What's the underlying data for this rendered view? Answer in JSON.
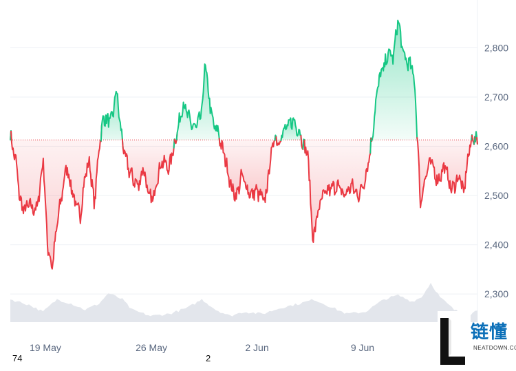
{
  "chart_data": {
    "type": "line",
    "baseline": 2613,
    "ylim": [
      2215,
      2890
    ],
    "yticks": [
      "2,300",
      "2,400",
      "2,500",
      "2,600",
      "2,700",
      "2,800"
    ],
    "ytick_values": [
      2300,
      2400,
      2500,
      2600,
      2700,
      2800
    ],
    "xticks": [
      "19 May",
      "26 May",
      "2 Jun",
      "9 Jun"
    ],
    "xtick_pos": [
      0.075,
      0.302,
      0.528,
      0.754
    ],
    "price_keypoints": [
      [
        0.0,
        2625
      ],
      [
        0.004,
        2600
      ],
      [
        0.012,
        2570
      ],
      [
        0.02,
        2495
      ],
      [
        0.028,
        2470
      ],
      [
        0.04,
        2480
      ],
      [
        0.055,
        2470
      ],
      [
        0.062,
        2500
      ],
      [
        0.07,
        2580
      ],
      [
        0.08,
        2395
      ],
      [
        0.09,
        2355
      ],
      [
        0.1,
        2440
      ],
      [
        0.11,
        2500
      ],
      [
        0.12,
        2560
      ],
      [
        0.13,
        2520
      ],
      [
        0.14,
        2480
      ],
      [
        0.15,
        2460
      ],
      [
        0.16,
        2540
      ],
      [
        0.17,
        2570
      ],
      [
        0.175,
        2520
      ],
      [
        0.18,
        2480
      ],
      [
        0.19,
        2600
      ],
      [
        0.2,
        2660
      ],
      [
        0.21,
        2650
      ],
      [
        0.22,
        2660
      ],
      [
        0.226,
        2720
      ],
      [
        0.232,
        2670
      ],
      [
        0.24,
        2610
      ],
      [
        0.245,
        2580
      ],
      [
        0.255,
        2550
      ],
      [
        0.265,
        2530
      ],
      [
        0.275,
        2520
      ],
      [
        0.285,
        2560
      ],
      [
        0.295,
        2500
      ],
      [
        0.305,
        2490
      ],
      [
        0.315,
        2540
      ],
      [
        0.325,
        2570
      ],
      [
        0.34,
        2555
      ],
      [
        0.35,
        2600
      ],
      [
        0.36,
        2640
      ],
      [
        0.37,
        2690
      ],
      [
        0.38,
        2660
      ],
      [
        0.39,
        2640
      ],
      [
        0.4,
        2640
      ],
      [
        0.41,
        2670
      ],
      [
        0.417,
        2770
      ],
      [
        0.425,
        2700
      ],
      [
        0.435,
        2640
      ],
      [
        0.445,
        2630
      ],
      [
        0.452,
        2600
      ],
      [
        0.46,
        2575
      ],
      [
        0.468,
        2540
      ],
      [
        0.475,
        2510
      ],
      [
        0.485,
        2500
      ],
      [
        0.495,
        2540
      ],
      [
        0.505,
        2520
      ],
      [
        0.515,
        2500
      ],
      [
        0.525,
        2510
      ],
      [
        0.535,
        2500
      ],
      [
        0.545,
        2485
      ],
      [
        0.555,
        2560
      ],
      [
        0.565,
        2620
      ],
      [
        0.575,
        2610
      ],
      [
        0.585,
        2630
      ],
      [
        0.595,
        2640
      ],
      [
        0.605,
        2655
      ],
      [
        0.612,
        2640
      ],
      [
        0.62,
        2630
      ],
      [
        0.628,
        2600
      ],
      [
        0.636,
        2590
      ],
      [
        0.642,
        2505
      ],
      [
        0.648,
        2405
      ],
      [
        0.655,
        2450
      ],
      [
        0.665,
        2490
      ],
      [
        0.68,
        2510
      ],
      [
        0.7,
        2520
      ],
      [
        0.715,
        2500
      ],
      [
        0.73,
        2520
      ],
      [
        0.745,
        2500
      ],
      [
        0.755,
        2520
      ],
      [
        0.765,
        2560
      ],
      [
        0.775,
        2620
      ],
      [
        0.78,
        2670
      ],
      [
        0.79,
        2740
      ],
      [
        0.8,
        2760
      ],
      [
        0.81,
        2790
      ],
      [
        0.82,
        2780
      ],
      [
        0.83,
        2860
      ],
      [
        0.84,
        2790
      ],
      [
        0.85,
        2770
      ],
      [
        0.86,
        2760
      ],
      [
        0.866,
        2720
      ],
      [
        0.872,
        2610
      ],
      [
        0.878,
        2480
      ],
      [
        0.886,
        2530
      ],
      [
        0.9,
        2570
      ],
      [
        0.915,
        2530
      ],
      [
        0.93,
        2560
      ],
      [
        0.945,
        2510
      ],
      [
        0.955,
        2530
      ],
      [
        0.962,
        2540
      ],
      [
        0.97,
        2500
      ],
      [
        0.98,
        2580
      ],
      [
        0.99,
        2620
      ],
      [
        1.0,
        2610
      ]
    ],
    "volume_keypoints": [
      [
        0.0,
        0.55
      ],
      [
        0.04,
        0.42
      ],
      [
        0.07,
        0.25
      ],
      [
        0.1,
        0.55
      ],
      [
        0.13,
        0.45
      ],
      [
        0.16,
        0.3
      ],
      [
        0.19,
        0.45
      ],
      [
        0.21,
        0.7
      ],
      [
        0.24,
        0.55
      ],
      [
        0.26,
        0.3
      ],
      [
        0.3,
        0.15
      ],
      [
        0.34,
        0.2
      ],
      [
        0.38,
        0.35
      ],
      [
        0.41,
        0.55
      ],
      [
        0.44,
        0.3
      ],
      [
        0.47,
        0.15
      ],
      [
        0.5,
        0.25
      ],
      [
        0.54,
        0.2
      ],
      [
        0.58,
        0.35
      ],
      [
        0.62,
        0.45
      ],
      [
        0.65,
        0.55
      ],
      [
        0.69,
        0.35
      ],
      [
        0.72,
        0.2
      ],
      [
        0.76,
        0.25
      ],
      [
        0.8,
        0.55
      ],
      [
        0.83,
        0.65
      ],
      [
        0.86,
        0.5
      ],
      [
        0.88,
        0.6
      ],
      [
        0.9,
        0.95
      ],
      [
        0.92,
        0.6
      ],
      [
        0.95,
        0.3
      ],
      [
        0.98,
        0.15
      ],
      [
        1.0,
        0.3
      ]
    ],
    "colors": {
      "up": "#16c784",
      "down": "#ea3943",
      "up_fill": "#16c784",
      "down_fill": "#ea3943",
      "baseline": "#ea3943",
      "grid": "#eef0f4",
      "volume": "#e3e6ec",
      "tick_text": "#58667e"
    },
    "grid": true
  },
  "footer": {
    "left_number": "74",
    "mid_number": "2"
  },
  "watermark": {
    "icon": "L-logo",
    "wordmark": "链懂",
    "subtext": "NEATDOWN.COM"
  }
}
